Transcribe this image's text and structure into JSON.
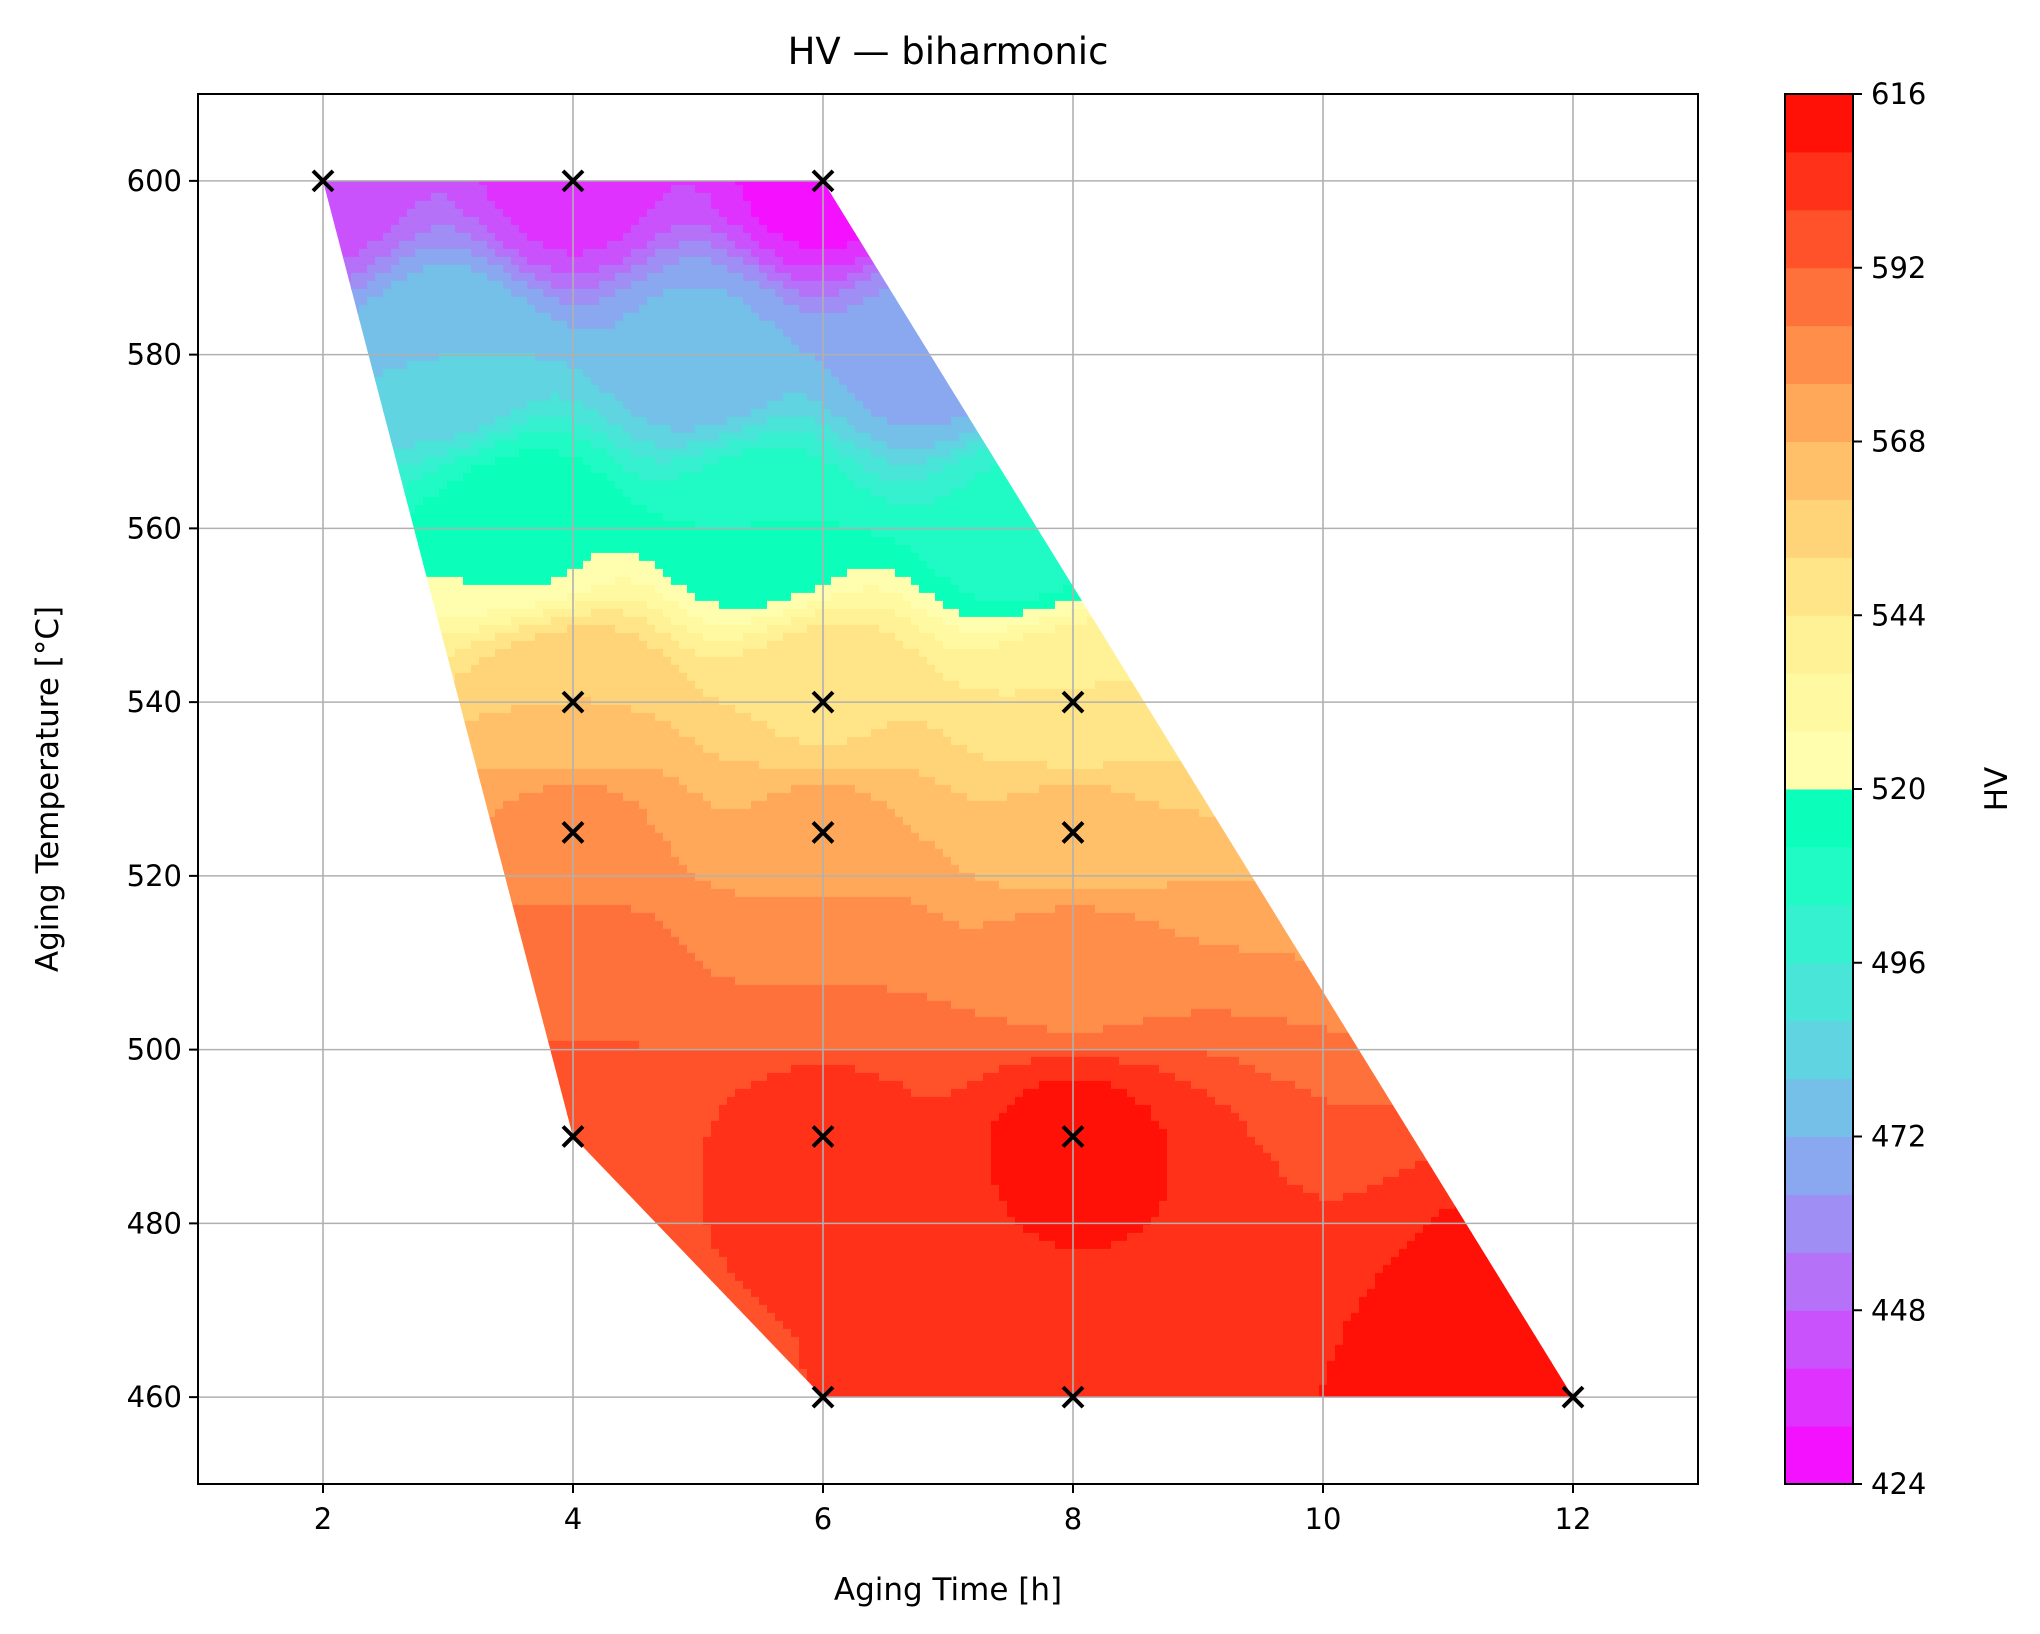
{
  "chart_data": {
    "type": "contour",
    "title": "HV — biharmonic",
    "xlabel": "Aging Time [h]",
    "ylabel": "Aging Temperature [°C]",
    "colorbar_label": "HV",
    "xlim": [
      1,
      13
    ],
    "ylim": [
      450,
      610
    ],
    "xticks": [
      "2",
      "4",
      "6",
      "8",
      "10",
      "12"
    ],
    "yticks": [
      "460",
      "480",
      "500",
      "520",
      "540",
      "560",
      "580",
      "600"
    ],
    "colorbar_ticks": [
      "424",
      "448",
      "472",
      "496",
      "520",
      "544",
      "568",
      "592",
      "616"
    ],
    "colorbar_range": [
      424,
      616
    ],
    "colormap": "rainbow",
    "levels": 24,
    "grid": true,
    "domain_polygon": [
      [
        2,
        600
      ],
      [
        6,
        600
      ],
      [
        12,
        460
      ],
      [
        6,
        460
      ],
      [
        4,
        490
      ]
    ],
    "samples": [
      {
        "x": 2,
        "y": 600
      },
      {
        "x": 4,
        "y": 600
      },
      {
        "x": 6,
        "y": 600
      },
      {
        "x": 4,
        "y": 540
      },
      {
        "x": 6,
        "y": 540
      },
      {
        "x": 8,
        "y": 540
      },
      {
        "x": 4,
        "y": 525
      },
      {
        "x": 6,
        "y": 525
      },
      {
        "x": 8,
        "y": 525
      },
      {
        "x": 4,
        "y": 490
      },
      {
        "x": 6,
        "y": 490
      },
      {
        "x": 8,
        "y": 490
      },
      {
        "x": 6,
        "y": 460
      },
      {
        "x": 8,
        "y": 460
      },
      {
        "x": 12,
        "y": 460
      }
    ],
    "grid_values": [
      {
        "x": 2,
        "y": 600,
        "v": 444
      },
      {
        "x": 4,
        "y": 600,
        "v": 436
      },
      {
        "x": 6,
        "y": 600,
        "v": 428
      },
      {
        "x": 3,
        "y": 580,
        "v": 480
      },
      {
        "x": 5,
        "y": 580,
        "v": 474
      },
      {
        "x": 6.8,
        "y": 580,
        "v": 468
      },
      {
        "x": 3.6,
        "y": 560,
        "v": 518
      },
      {
        "x": 5.5,
        "y": 560,
        "v": 512
      },
      {
        "x": 7.6,
        "y": 560,
        "v": 506
      },
      {
        "x": 4,
        "y": 540,
        "v": 560
      },
      {
        "x": 6,
        "y": 540,
        "v": 551
      },
      {
        "x": 8,
        "y": 540,
        "v": 544
      },
      {
        "x": 4,
        "y": 525,
        "v": 578
      },
      {
        "x": 6,
        "y": 525,
        "v": 570
      },
      {
        "x": 8,
        "y": 525,
        "v": 562
      },
      {
        "x": 4,
        "y": 510,
        "v": 588
      },
      {
        "x": 6,
        "y": 510,
        "v": 584
      },
      {
        "x": 8,
        "y": 510,
        "v": 580
      },
      {
        "x": 4,
        "y": 490,
        "v": 600
      },
      {
        "x": 6,
        "y": 490,
        "v": 604
      },
      {
        "x": 8,
        "y": 490,
        "v": 610
      },
      {
        "x": 6,
        "y": 460,
        "v": 600
      },
      {
        "x": 8,
        "y": 460,
        "v": 608
      },
      {
        "x": 12,
        "y": 460,
        "v": 616
      }
    ]
  }
}
